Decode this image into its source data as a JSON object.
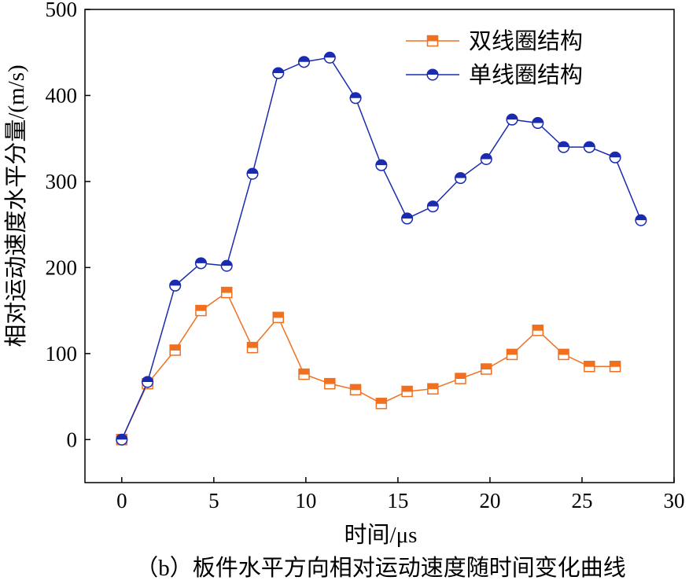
{
  "chart_data": {
    "type": "line",
    "title": "",
    "caption": "（b）板件水平方向相对运动速度随时间变化曲线",
    "xlabel": "时间/μs",
    "ylabel": "相对运动速度水平分量/(m/s)",
    "xlim": [
      -2,
      30
    ],
    "ylim": [
      -50,
      500
    ],
    "xticks": [
      0,
      5,
      10,
      15,
      20,
      25,
      30
    ],
    "yticks": [
      0,
      100,
      200,
      300,
      400,
      500
    ],
    "grid": false,
    "legend_position": "top-right",
    "series": [
      {
        "name": "双线圈结构",
        "color": "#f07020",
        "marker": "square",
        "x": [
          0,
          1.4,
          2.9,
          4.3,
          5.7,
          7.1,
          8.5,
          9.9,
          11.3,
          12.7,
          14.1,
          15.5,
          16.9,
          18.4,
          19.8,
          21.2,
          22.6,
          24.0,
          25.4,
          26.8
        ],
        "values": [
          0,
          65,
          104,
          150,
          171,
          107,
          142,
          76,
          65,
          58,
          42,
          56,
          59,
          71,
          82,
          99,
          127,
          99,
          85,
          85
        ]
      },
      {
        "name": "单线圈结构",
        "color": "#1a2bb0",
        "marker": "half-circle",
        "x": [
          0,
          1.4,
          2.9,
          4.3,
          5.7,
          7.1,
          8.5,
          9.9,
          11.3,
          12.7,
          14.1,
          15.5,
          16.9,
          18.4,
          19.8,
          21.2,
          22.6,
          24.0,
          25.4,
          26.8,
          28.2
        ],
        "values": [
          0,
          67,
          179,
          205,
          202,
          309,
          426,
          439,
          444,
          397,
          319,
          257,
          271,
          304,
          326,
          372,
          368,
          340,
          340,
          328,
          255
        ]
      }
    ]
  }
}
